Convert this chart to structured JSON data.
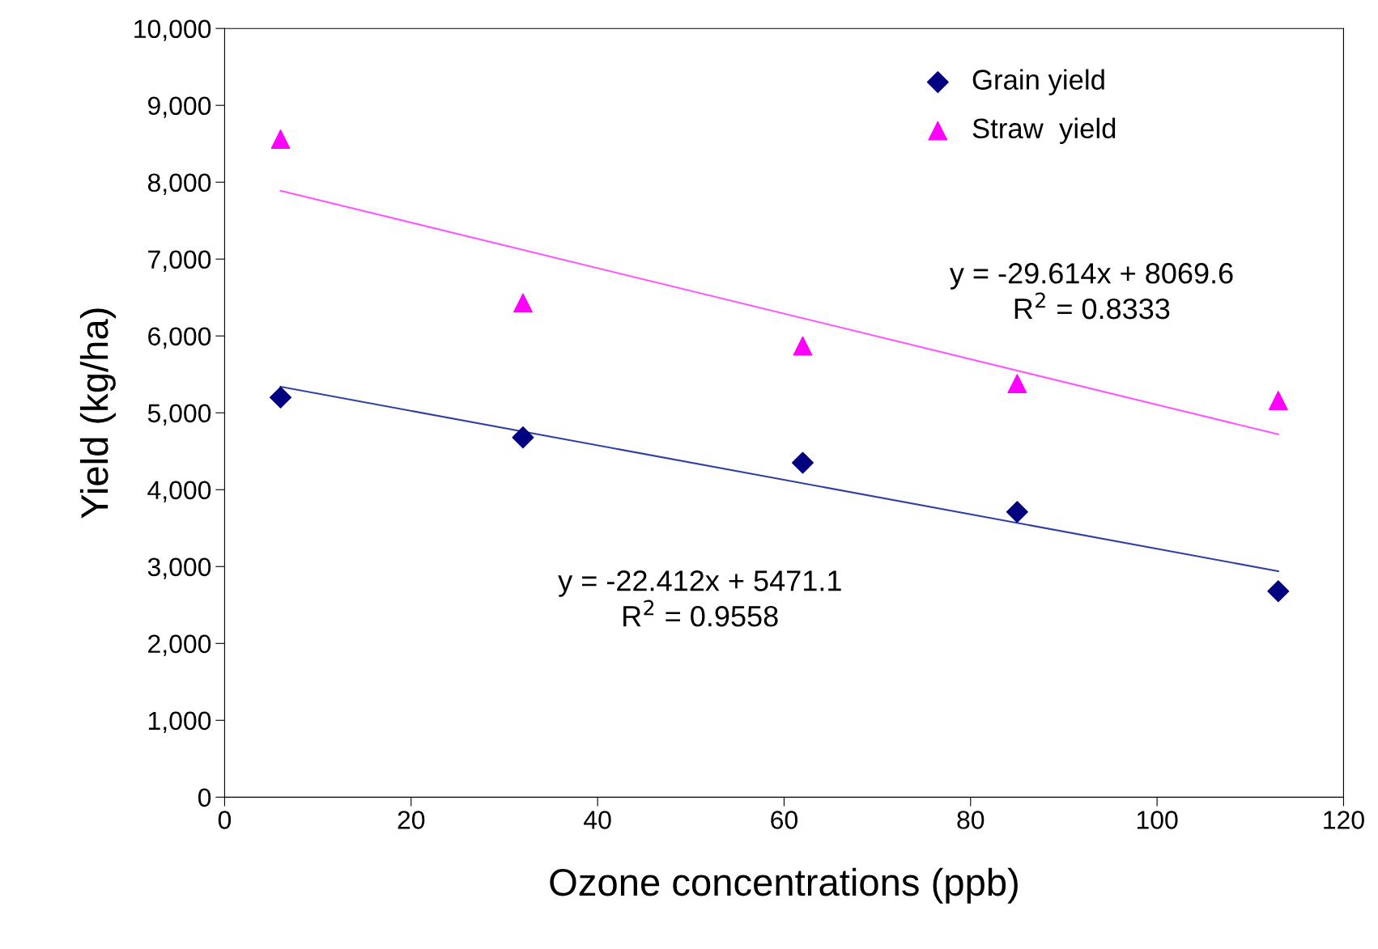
{
  "chart_data": {
    "type": "scatter",
    "xlabel": "Ozone concentrations (ppb)",
    "ylabel": "Yield (kg/ha)",
    "xlim": [
      0,
      120
    ],
    "xticks": [
      0,
      20,
      40,
      60,
      80,
      100,
      120
    ],
    "ylim": [
      0,
      10000
    ],
    "yticks": [
      0,
      {
        "value": 1000,
        "label": "1,000"
      },
      {
        "value": 2000,
        "label": "2,000"
      },
      {
        "value": 3000,
        "label": "3,000"
      },
      {
        "value": 4000,
        "label": "4,000"
      },
      {
        "value": 5000,
        "label": "5,000"
      },
      {
        "value": 6000,
        "label": "6,000"
      },
      {
        "value": 7000,
        "label": "7,000"
      },
      {
        "value": 8000,
        "label": "8,000"
      },
      {
        "value": 9000,
        "label": "9,000"
      },
      {
        "value": 10000,
        "label": "10,000"
      }
    ],
    "grid": false,
    "legend": "top right",
    "series": [
      {
        "name": "Grain yield",
        "marker": "diamond",
        "color": "#000080",
        "x": [
          6,
          32,
          62,
          85,
          113
        ],
        "values": [
          5200,
          4680,
          4350,
          3710,
          2680
        ]
      },
      {
        "name": "Straw  yield",
        "marker": "triangle",
        "color": "#ff00ff",
        "x": [
          6,
          32,
          62,
          85,
          113
        ],
        "values": [
          8560,
          6430,
          5870,
          5380,
          5160
        ]
      },
      {
        "type": "line",
        "marker": "none",
        "color": "#3040a0",
        "x": [
          6,
          113
        ],
        "values": [
          5340,
          2940
        ]
      },
      {
        "type": "line",
        "marker": "none",
        "color": "#ff55ff",
        "x": [
          6,
          113
        ],
        "values": [
          7890,
          4720
        ]
      }
    ],
    "annotations": [
      "y = -22.412x + 5471.1\nR$^{2}$ = 0.9558",
      "y = -29.614x + 8069.6\nR$^{2}$ = 0.8333"
    ]
  }
}
